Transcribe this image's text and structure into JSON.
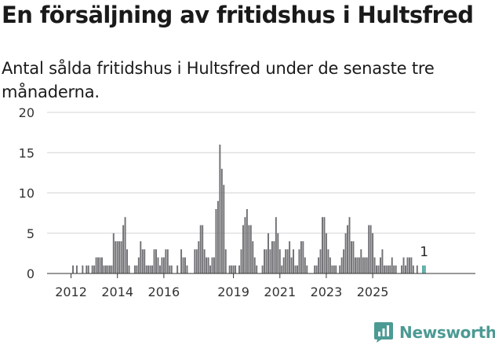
{
  "title": "En försäljning av fritidshus i Hultsfred",
  "subtitle": "Antal sålda fritidshus i Hultsfred under de senaste tre månaderna.",
  "brand": {
    "name": "Newsworthy",
    "icon": "newsworthy-logo-icon",
    "color": "#4c9a94"
  },
  "chart_data": {
    "type": "bar",
    "title": "En försäljning av fritidshus i Hultsfred",
    "subtitle": "Antal sålda fritidshus i Hultsfred under de senaste tre månaderna.",
    "xlabel": "",
    "ylabel": "",
    "ylim": [
      0,
      20
    ],
    "yticks": [
      0,
      5,
      10,
      15,
      20
    ],
    "grid": true,
    "legend": "none",
    "x_ticks": [
      {
        "label": "2012",
        "date": "2012-01"
      },
      {
        "label": "2014",
        "date": "2014-01"
      },
      {
        "label": "2016",
        "date": "2016-01"
      },
      {
        "label": "2019",
        "date": "2019-01"
      },
      {
        "label": "2021",
        "date": "2021-01"
      },
      {
        "label": "2023",
        "date": "2023-01"
      },
      {
        "label": "2025",
        "date": "2025-01"
      }
    ],
    "colors": {
      "bar": "#727175",
      "highlight": "#3e9c94"
    },
    "start_month": "2011-01",
    "values": [
      0,
      0,
      0,
      0,
      0,
      0,
      0,
      0,
      0,
      0,
      0,
      0,
      0,
      1,
      0,
      1,
      0,
      0,
      1,
      0,
      1,
      1,
      0,
      1,
      1,
      2,
      2,
      2,
      2,
      1,
      1,
      1,
      1,
      1,
      5,
      4,
      4,
      4,
      4,
      6,
      7,
      3,
      1,
      0,
      0,
      1,
      1,
      2,
      4,
      3,
      3,
      1,
      1,
      1,
      1,
      3,
      3,
      2,
      1,
      2,
      2,
      3,
      3,
      1,
      1,
      0,
      0,
      1,
      0,
      3,
      2,
      2,
      1,
      0,
      0,
      0,
      3,
      3,
      4,
      6,
      6,
      3,
      2,
      2,
      1,
      2,
      2,
      8,
      9,
      16,
      13,
      11,
      3,
      0,
      1,
      1,
      1,
      1,
      0,
      1,
      3,
      6,
      7,
      8,
      6,
      6,
      4,
      2,
      1,
      0,
      0,
      1,
      3,
      3,
      5,
      3,
      4,
      4,
      7,
      5,
      3,
      1,
      2,
      3,
      3,
      4,
      2,
      3,
      1,
      1,
      3,
      4,
      4,
      2,
      1,
      0,
      0,
      0,
      1,
      1,
      2,
      3,
      7,
      7,
      5,
      3,
      2,
      1,
      1,
      1,
      0,
      1,
      2,
      3,
      5,
      6,
      7,
      4,
      4,
      2,
      2,
      2,
      3,
      2,
      2,
      2,
      6,
      6,
      5,
      2,
      1,
      1,
      2,
      3,
      1,
      1,
      1,
      1,
      2,
      1,
      1,
      0,
      0,
      1,
      2,
      1,
      2,
      2,
      2,
      1,
      0,
      1,
      0,
      0,
      1,
      1
    ],
    "highlight_index": 2,
    "highlight_label": "1"
  }
}
